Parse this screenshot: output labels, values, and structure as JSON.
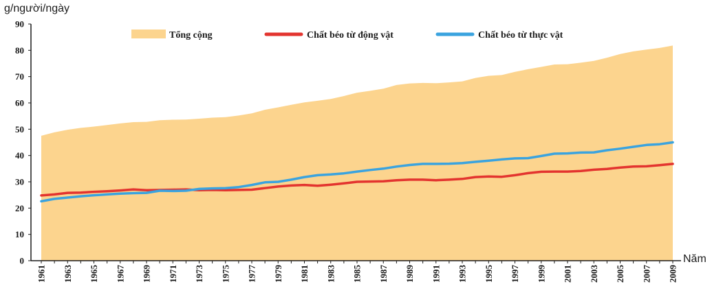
{
  "chart_data": {
    "type": "area",
    "ylabel": "g/người/ngày",
    "xlabel": "Năm",
    "ylim": [
      0,
      90
    ],
    "yticks": [
      0,
      10,
      20,
      30,
      40,
      50,
      60,
      70,
      80,
      90
    ],
    "xlim": [
      1961,
      2009
    ],
    "xticks": [
      1961,
      1963,
      1965,
      1967,
      1969,
      1971,
      1973,
      1975,
      1977,
      1979,
      1981,
      1983,
      1985,
      1987,
      1989,
      1991,
      1993,
      1995,
      1997,
      1999,
      2001,
      2003,
      2005,
      2007,
      2009
    ],
    "grid": false,
    "legend_position": "top",
    "x": [
      1961,
      1962,
      1963,
      1964,
      1965,
      1966,
      1967,
      1968,
      1969,
      1970,
      1971,
      1972,
      1973,
      1974,
      1975,
      1976,
      1977,
      1978,
      1979,
      1980,
      1981,
      1982,
      1983,
      1984,
      1985,
      1986,
      1987,
      1988,
      1989,
      1990,
      1991,
      1992,
      1993,
      1994,
      1995,
      1996,
      1997,
      1998,
      1999,
      2000,
      2001,
      2002,
      2003,
      2004,
      2005,
      2006,
      2007,
      2008,
      2009
    ],
    "series": [
      {
        "name": "Tổng cộng",
        "kind": "area",
        "color": "#fcd48e",
        "values": [
          47.5,
          48.8,
          49.8,
          50.5,
          51.0,
          51.6,
          52.2,
          52.7,
          52.8,
          53.4,
          53.6,
          53.7,
          54.0,
          54.4,
          54.6,
          55.2,
          56.0,
          57.4,
          58.3,
          59.3,
          60.2,
          60.8,
          61.5,
          62.6,
          63.9,
          64.6,
          65.4,
          66.8,
          67.4,
          67.6,
          67.5,
          67.8,
          68.2,
          69.5,
          70.3,
          70.6,
          71.8,
          72.8,
          73.7,
          74.6,
          74.7,
          75.3,
          76.0,
          77.2,
          78.6,
          79.6,
          80.3,
          80.9,
          81.8
        ]
      },
      {
        "name": "Chất béo từ động vật",
        "kind": "line",
        "color": "#e3342f",
        "values": [
          24.8,
          25.2,
          25.8,
          25.9,
          26.2,
          26.4,
          26.7,
          27.1,
          26.8,
          26.9,
          27.0,
          27.1,
          26.8,
          26.9,
          26.8,
          26.9,
          27.0,
          27.6,
          28.2,
          28.6,
          28.8,
          28.5,
          28.9,
          29.4,
          30.0,
          30.1,
          30.2,
          30.6,
          30.8,
          30.8,
          30.6,
          30.8,
          31.1,
          31.8,
          32.0,
          31.9,
          32.5,
          33.3,
          33.8,
          33.9,
          33.9,
          34.1,
          34.6,
          34.9,
          35.4,
          35.8,
          35.9,
          36.3,
          36.8
        ]
      },
      {
        "name": "Chất béo từ thực vật",
        "kind": "line",
        "color": "#3aa3df",
        "values": [
          22.6,
          23.5,
          24.0,
          24.5,
          24.9,
          25.2,
          25.5,
          25.7,
          25.8,
          26.6,
          26.5,
          26.6,
          27.3,
          27.5,
          27.6,
          28.0,
          28.8,
          29.8,
          30.0,
          30.8,
          31.8,
          32.5,
          32.8,
          33.2,
          33.9,
          34.5,
          35.0,
          35.8,
          36.4,
          36.8,
          36.8,
          36.9,
          37.1,
          37.6,
          38.0,
          38.5,
          38.9,
          39.0,
          39.8,
          40.7,
          40.8,
          41.1,
          41.2,
          42.0,
          42.6,
          43.3,
          44.0,
          44.3,
          45.0
        ]
      }
    ]
  }
}
